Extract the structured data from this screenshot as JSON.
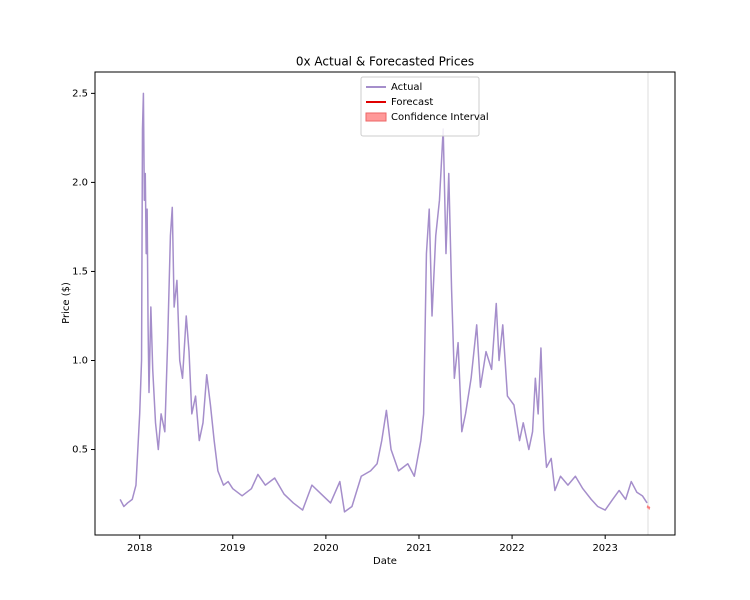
{
  "chart_data": {
    "type": "line",
    "title": "0x Actual & Forecasted Prices",
    "x_label": "Date",
    "y_label": "Price ($)",
    "xlim": [
      2017.52,
      2023.75
    ],
    "ylim": [
      0.02,
      2.62
    ],
    "xticks": [
      2018,
      2019,
      2020,
      2021,
      2022,
      2023
    ],
    "yticks": [
      0.5,
      {
        "value": 1,
        "label": "1.0"
      },
      1.5,
      {
        "value": 2,
        "label": "2.0"
      },
      2.5
    ],
    "legend": "upper center",
    "grid": false,
    "series": [
      {
        "name": "Actual",
        "color": "#a58ecb",
        "kind": "line",
        "x": [
          2017.79,
          2017.83,
          2017.87,
          2017.92,
          2017.96,
          2017.99,
          2018.0,
          2018.02,
          2018.03,
          2018.04,
          2018.05,
          2018.06,
          2018.07,
          2018.08,
          2018.09,
          2018.1,
          2018.12,
          2018.14,
          2018.17,
          2018.2,
          2018.23,
          2018.27,
          2018.3,
          2018.33,
          2018.35,
          2018.37,
          2018.4,
          2018.43,
          2018.46,
          2018.5,
          2018.53,
          2018.56,
          2018.6,
          2018.64,
          2018.68,
          2018.72,
          2018.76,
          2018.8,
          2018.84,
          2018.9,
          2018.95,
          2019.0,
          2019.1,
          2019.2,
          2019.27,
          2019.35,
          2019.45,
          2019.55,
          2019.65,
          2019.75,
          2019.85,
          2019.95,
          2020.05,
          2020.15,
          2020.2,
          2020.28,
          2020.38,
          2020.48,
          2020.55,
          2020.6,
          2020.65,
          2020.7,
          2020.78,
          2020.88,
          2020.95,
          2021.02,
          2021.05,
          2021.08,
          2021.11,
          2021.14,
          2021.18,
          2021.22,
          2021.26,
          2021.29,
          2021.32,
          2021.35,
          2021.38,
          2021.42,
          2021.46,
          2021.5,
          2021.56,
          2021.62,
          2021.66,
          2021.72,
          2021.78,
          2021.83,
          2021.86,
          2021.9,
          2021.95,
          2022.02,
          2022.08,
          2022.12,
          2022.18,
          2022.22,
          2022.25,
          2022.28,
          2022.31,
          2022.34,
          2022.37,
          2022.42,
          2022.46,
          2022.52,
          2022.6,
          2022.68,
          2022.76,
          2022.85,
          2022.92,
          2023.0,
          2023.08,
          2023.15,
          2023.22,
          2023.28,
          2023.34,
          2023.4,
          2023.45
        ],
        "values": [
          0.22,
          0.18,
          0.2,
          0.22,
          0.3,
          0.6,
          0.7,
          1.0,
          2.3,
          2.5,
          1.9,
          2.05,
          1.6,
          1.85,
          1.2,
          0.82,
          1.3,
          0.95,
          0.65,
          0.5,
          0.7,
          0.6,
          1.1,
          1.7,
          1.86,
          1.3,
          1.45,
          1.0,
          0.9,
          1.25,
          1.05,
          0.7,
          0.8,
          0.55,
          0.65,
          0.92,
          0.75,
          0.55,
          0.38,
          0.3,
          0.32,
          0.28,
          0.24,
          0.28,
          0.36,
          0.3,
          0.34,
          0.25,
          0.2,
          0.16,
          0.3,
          0.25,
          0.2,
          0.32,
          0.15,
          0.18,
          0.35,
          0.38,
          0.42,
          0.55,
          0.72,
          0.5,
          0.38,
          0.42,
          0.35,
          0.55,
          0.7,
          1.6,
          1.85,
          1.25,
          1.7,
          1.9,
          2.3,
          1.6,
          2.05,
          1.4,
          0.9,
          1.1,
          0.6,
          0.7,
          0.9,
          1.2,
          0.85,
          1.05,
          0.95,
          1.32,
          1.0,
          1.2,
          0.8,
          0.75,
          0.55,
          0.65,
          0.5,
          0.6,
          0.9,
          0.7,
          1.07,
          0.6,
          0.4,
          0.45,
          0.27,
          0.35,
          0.3,
          0.35,
          0.28,
          0.22,
          0.18,
          0.16,
          0.22,
          0.27,
          0.22,
          0.32,
          0.26,
          0.24,
          0.2
        ]
      },
      {
        "name": "Forecast",
        "color": "#e00000",
        "kind": "line",
        "x": [
          2023.45,
          2023.48
        ],
        "values": [
          0.18,
          0.17
        ]
      },
      {
        "name": "Confidence Interval",
        "color": "#ff9999",
        "kind": "band",
        "x": [
          2023.45,
          2023.48
        ],
        "upper": [
          0.19,
          0.18
        ],
        "lower": [
          0.17,
          0.16
        ]
      }
    ]
  }
}
